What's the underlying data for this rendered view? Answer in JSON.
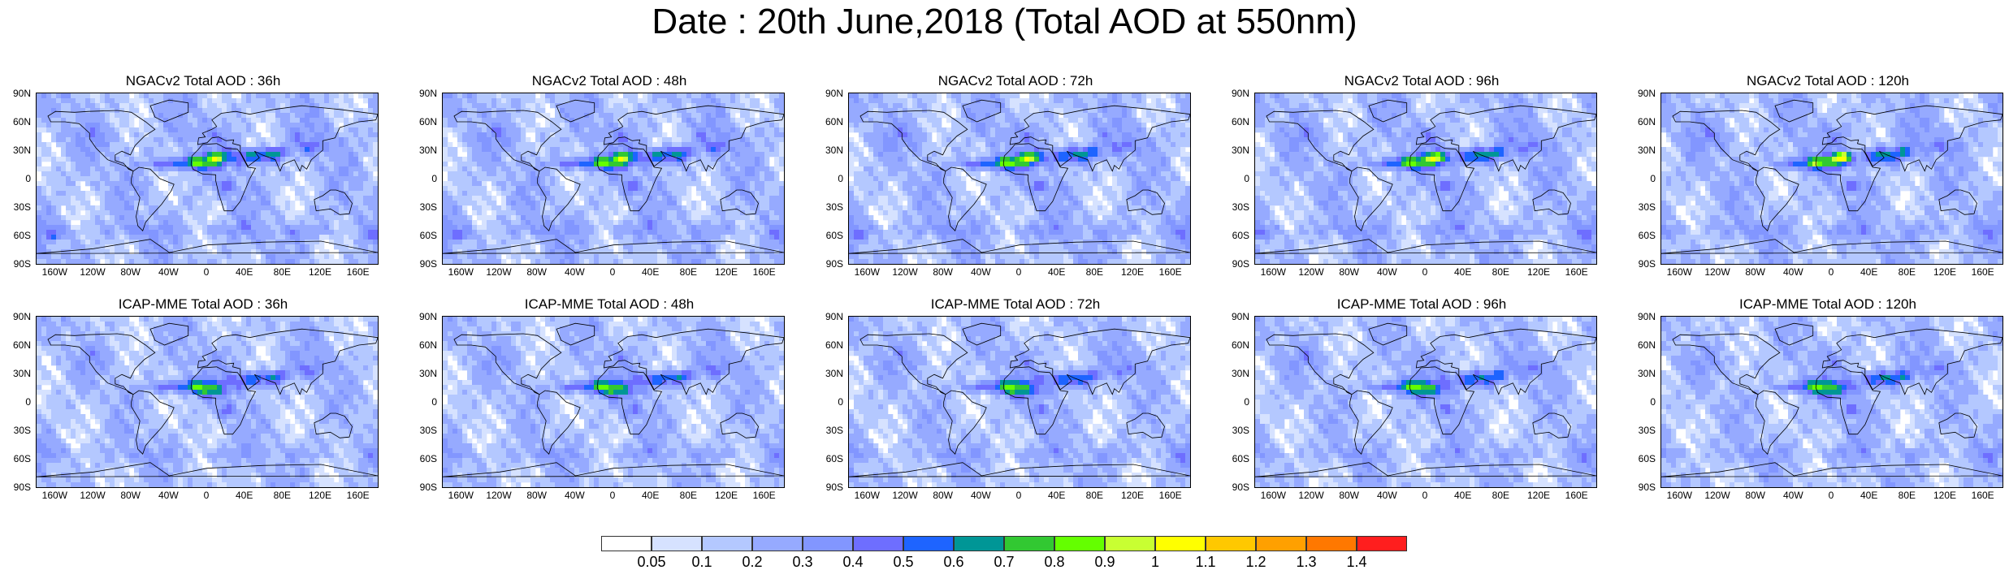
{
  "title": "Date : 20th June,2018 (Total AOD at 550nm)",
  "panels": [
    {
      "title": "NGACv2 Total AOD : 36h",
      "model": "NGACv2",
      "forecast_hour": 36
    },
    {
      "title": "NGACv2 Total AOD : 48h",
      "model": "NGACv2",
      "forecast_hour": 48
    },
    {
      "title": "NGACv2 Total AOD : 72h",
      "model": "NGACv2",
      "forecast_hour": 72
    },
    {
      "title": "NGACv2 Total AOD : 96h",
      "model": "NGACv2",
      "forecast_hour": 96
    },
    {
      "title": "NGACv2 Total AOD : 120h",
      "model": "NGACv2",
      "forecast_hour": 120
    },
    {
      "title": "ICAP-MME Total AOD : 36h",
      "model": "ICAP-MME",
      "forecast_hour": 36
    },
    {
      "title": "ICAP-MME Total AOD : 48h",
      "model": "ICAP-MME",
      "forecast_hour": 48
    },
    {
      "title": "ICAP-MME Total AOD : 72h",
      "model": "ICAP-MME",
      "forecast_hour": 72
    },
    {
      "title": "ICAP-MME Total AOD : 96h",
      "model": "ICAP-MME",
      "forecast_hour": 96
    },
    {
      "title": "ICAP-MME Total AOD : 120h",
      "model": "ICAP-MME",
      "forecast_hour": 120
    }
  ],
  "lat_labels": [
    "90N",
    "60N",
    "30N",
    "0",
    "30S",
    "60S",
    "90S"
  ],
  "lon_labels": [
    "160W",
    "120W",
    "80W",
    "40W",
    "0",
    "40E",
    "80E",
    "120E",
    "160E"
  ],
  "colorbar": {
    "labels": [
      "0.05",
      "0.1",
      "0.2",
      "0.3",
      "0.4",
      "0.5",
      "0.6",
      "0.7",
      "0.8",
      "0.9",
      "1",
      "1.1",
      "1.2",
      "1.3",
      "1.4"
    ],
    "colors": [
      "#ffffff",
      "#d6e2ff",
      "#b4c8ff",
      "#96aaff",
      "#8296ff",
      "#6e6eff",
      "#1e64ff",
      "#009696",
      "#32c832",
      "#64ff00",
      "#c8ff32",
      "#ffff00",
      "#ffc800",
      "#ffa000",
      "#ff7800",
      "#ff1e1e"
    ]
  }
}
